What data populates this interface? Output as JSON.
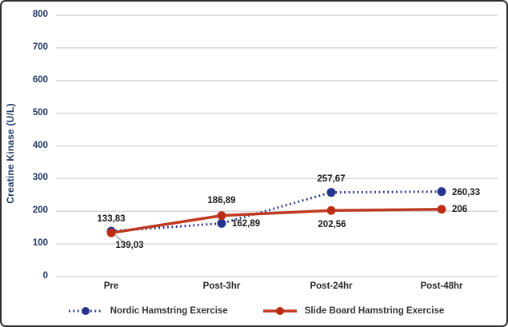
{
  "chart_data": {
    "type": "line",
    "title": "",
    "xlabel": "",
    "ylabel": "Creatine Kinase (U/L)",
    "categories": [
      "Pre",
      "Post-3hr",
      "Post-24hr",
      "Post-48hr"
    ],
    "series": [
      {
        "name": "Nordic Hamstring Exercise",
        "values": [
          139.03,
          162.89,
          257.67,
          260.33
        ],
        "point_labels": [
          "139,03",
          "162,89",
          "257,67",
          "260,33"
        ],
        "color": "#24318f",
        "marker_fill": "#27348f",
        "line_style": "dotted"
      },
      {
        "name": "Slide Board Hamstring Exercise",
        "values": [
          133.83,
          186.89,
          202.56,
          206
        ],
        "point_labels": [
          "133,83",
          "186,89",
          "202,56",
          "206"
        ],
        "color": "#c03a21",
        "marker_fill": "#bb2a12",
        "line_style": "solid"
      }
    ],
    "ylim": [
      0,
      800
    ],
    "yticks": [
      0,
      100,
      200,
      300,
      400,
      500,
      600,
      700,
      800
    ],
    "ytick_labels": [
      "0",
      "100",
      "200",
      "300",
      "400",
      "500",
      "600",
      "700",
      "800"
    ],
    "grid": true,
    "gridline_color": "#d6d6d6",
    "legend_position": "bottom",
    "decimal_separator": ","
  }
}
